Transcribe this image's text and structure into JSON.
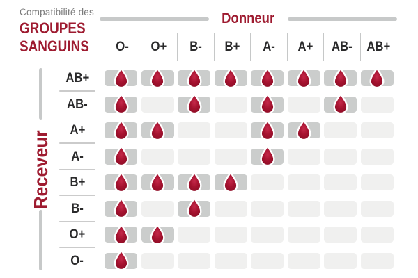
{
  "title": {
    "prefix": "Compatibilité des",
    "line1": "GROUPES",
    "line2": "SANGUINS"
  },
  "axes": {
    "donor_label": "Donneur",
    "receiver_label": "Receveur"
  },
  "chart_data": {
    "type": "heatmap",
    "title": "Compatibilité des groupes sanguins",
    "columns_axis_label": "Donneur",
    "rows_axis_label": "Receveur",
    "columns": [
      "O-",
      "O+",
      "B-",
      "B+",
      "A-",
      "A+",
      "AB-",
      "AB+"
    ],
    "rows": [
      "AB+",
      "AB-",
      "A+",
      "A-",
      "B+",
      "B-",
      "O+",
      "O-"
    ],
    "matrix": [
      [
        1,
        1,
        1,
        1,
        1,
        1,
        1,
        1
      ],
      [
        1,
        0,
        1,
        0,
        1,
        0,
        1,
        0
      ],
      [
        1,
        1,
        0,
        0,
        1,
        1,
        0,
        0
      ],
      [
        1,
        0,
        0,
        0,
        1,
        0,
        0,
        0
      ],
      [
        1,
        1,
        1,
        1,
        0,
        0,
        0,
        0
      ],
      [
        1,
        0,
        1,
        0,
        0,
        0,
        0,
        0
      ],
      [
        1,
        1,
        0,
        0,
        0,
        0,
        0,
        0
      ],
      [
        1,
        0,
        0,
        0,
        0,
        0,
        0,
        0
      ]
    ],
    "compatible_marker": "blood-drop-icon",
    "legend_position": "none",
    "grid": false
  },
  "colors": {
    "accent_red": "#9e1b30",
    "drop_red": "#a5122f",
    "drop_red_dark": "#8a0d25",
    "drop_red_light": "#c5294a",
    "cell_compatible_bg": "#cbcdcc",
    "cell_empty_bg": "#f0f0ef",
    "title_muted_gray": "#7a7a7a",
    "line_gray": "#c7c9c9",
    "label_dark": "#2a2a2b"
  }
}
